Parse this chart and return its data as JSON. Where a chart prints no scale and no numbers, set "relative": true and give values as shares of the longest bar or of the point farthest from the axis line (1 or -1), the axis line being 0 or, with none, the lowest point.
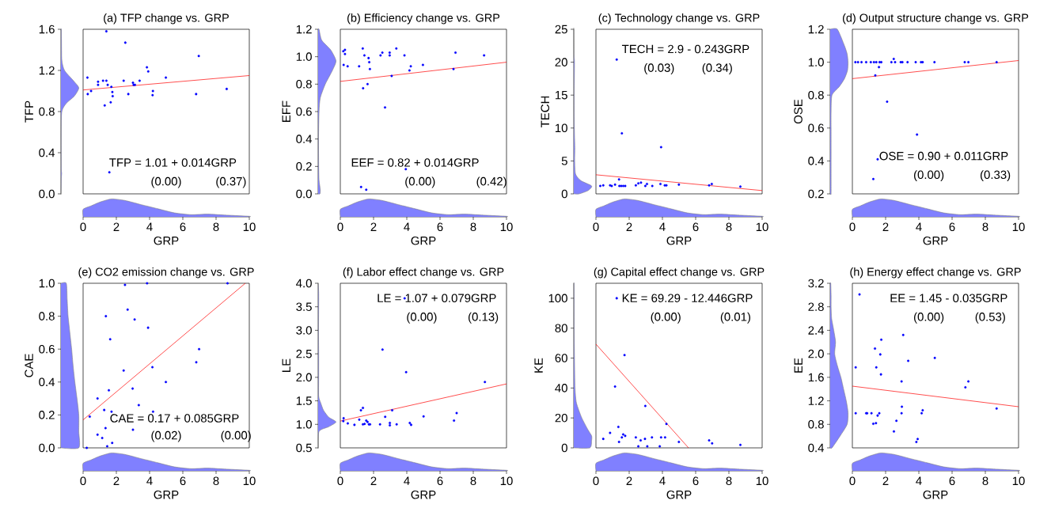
{
  "chart_data": [
    {
      "type": "scatter",
      "title": "(a) TFP change vs. GRP",
      "xlim": [
        0,
        10
      ],
      "ylim": [
        0,
        1.6
      ],
      "tick_labels": false,
      "marker": "circle",
      "annotations": [
        "TFP = 1.01 + 0.014GRP",
        "(0.00)",
        "(0.37)"
      ],
      "series": [
        {
          "type": "scatter",
          "color": "#0000ff",
          "x": [
            0.26,
            0.28,
            0.48,
            0.9,
            0.9,
            1.2,
            1.3,
            1.4,
            1.4,
            1.48,
            1.66,
            1.7,
            1.76,
            1.78,
            1.58,
            2.44,
            2.54,
            2.72,
            3.0,
            3.04,
            3.12,
            3.4,
            3.84,
            3.92,
            4.2,
            4.18,
            4.98,
            6.8,
            6.96,
            8.64
          ],
          "values": [
            1.13,
            0.97,
            1.0,
            1.09,
            1.06,
            1.1,
            0.86,
            1.58,
            1.1,
            1.06,
            0.89,
            1.04,
            0.99,
            0.95,
            0.21,
            1.1,
            1.47,
            0.97,
            1.08,
            1.06,
            1.06,
            1.1,
            1.23,
            1.19,
            1.0,
            0.96,
            1.13,
            0.97,
            1.34,
            1.02
          ]
        },
        {
          "type": "line",
          "color": "#ff0000",
          "x": [
            0,
            10
          ],
          "values": [
            1.01,
            1.15
          ],
          "marker": "none"
        }
      ]
    },
    {
      "type": "area",
      "relative": true,
      "color": "#8080ff",
      "xlim": [
        0,
        10
      ],
      "xticks": [
        0,
        2,
        4,
        6,
        8,
        10
      ],
      "xlabel": "GRP",
      "tick_labels": "x",
      "x": [
        0,
        0.5,
        1,
        1.7,
        2.5,
        3.5,
        4.5,
        5.5,
        6.5,
        7.5,
        8.5,
        10
      ],
      "values": [
        0.42,
        0.62,
        0.82,
        1.0,
        0.92,
        0.68,
        0.45,
        0.22,
        0.12,
        0.15,
        0.1,
        0.03
      ]
    },
    {
      "type": "area",
      "orientation": "horizontal",
      "relative": true,
      "color": "#8080ff",
      "ylim": [
        0,
        1.6
      ],
      "yticks": [
        {
          "value": 0,
          "label": "0.0"
        },
        0.4,
        0.8,
        1.2,
        1.6
      ],
      "ylabel": "TFP",
      "tick_labels": "y",
      "x": [
        0,
        0.15,
        0.2,
        0.25,
        0.6,
        0.8,
        0.88,
        0.95,
        1.03,
        1.1,
        1.2,
        1.3,
        1.5,
        1.6
      ],
      "values": [
        0,
        0.02,
        0.04,
        0.02,
        0.01,
        0.05,
        0.3,
        0.75,
        1.0,
        0.7,
        0.2,
        0.05,
        0.03,
        0.02
      ]
    },
    {
      "type": "scatter",
      "title": "(b) Efficiency change vs. GRP",
      "xlim": [
        0,
        10
      ],
      "ylim": [
        0,
        1.2
      ],
      "tick_labels": false,
      "marker": "circle",
      "annotations": [
        "EEF = 0.82 + 0.014GRP",
        "(0.00)",
        "(0.42)"
      ],
      "series": [
        {
          "type": "scatter",
          "color": "#0000ff",
          "x": [
            0.18,
            0.2,
            0.44,
            0.28,
            0.28,
            1.13,
            1.35,
            1.45,
            1.37,
            1.64,
            1.7,
            1.74,
            1.78,
            1.25,
            1.56,
            2.42,
            2.53,
            2.69,
            2.97,
            2.97,
            3.37,
            3.09,
            3.86,
            3.94,
            4.24,
            4.16,
            4.97,
            6.81,
            6.93,
            8.65
          ],
          "values": [
            1.04,
            0.94,
            0.93,
            1.05,
            1.02,
            0.93,
            1.06,
            1.01,
            0.77,
            0.8,
            0.99,
            0.96,
            0.91,
            0.05,
            0.03,
            1.01,
            1.03,
            0.63,
            1.03,
            1.01,
            1.06,
            0.86,
            1.01,
            0.18,
            0.93,
            0.9,
            0.94,
            0.91,
            1.03,
            1.01
          ]
        },
        {
          "type": "line",
          "color": "#ff0000",
          "x": [
            0,
            10
          ],
          "values": [
            0.82,
            0.96
          ],
          "marker": "none"
        }
      ]
    },
    {
      "type": "area",
      "relative": true,
      "color": "#8080ff",
      "xlim": [
        0,
        10
      ],
      "xticks": [
        0,
        2,
        4,
        6,
        8,
        10
      ],
      "xlabel": "GRP",
      "tick_labels": "x",
      "x": [
        0,
        0.5,
        1,
        1.7,
        2.5,
        3.5,
        4.5,
        5.5,
        6.5,
        7.5,
        8.5,
        10
      ],
      "values": [
        0.42,
        0.62,
        0.82,
        1.0,
        0.92,
        0.68,
        0.45,
        0.22,
        0.12,
        0.15,
        0.1,
        0.03
      ]
    },
    {
      "type": "area",
      "orientation": "horizontal",
      "relative": true,
      "color": "#8080ff",
      "ylim": [
        0,
        1.2
      ],
      "yticks": [
        {
          "value": 0,
          "label": "0.0"
        },
        0.2,
        0.4,
        0.6,
        0.8,
        {
          "value": 1,
          "label": "1.0"
        },
        1.2
      ],
      "ylabel": "EFF",
      "tick_labels": "y",
      "x": [
        0,
        0.03,
        0.1,
        0.2,
        0.4,
        0.6,
        0.7,
        0.8,
        0.9,
        0.97,
        1.05,
        1.12,
        1.2
      ],
      "values": [
        0.1,
        0.12,
        0.05,
        0.03,
        0.02,
        0.05,
        0.12,
        0.4,
        0.8,
        1.0,
        0.7,
        0.2,
        0.05
      ]
    },
    {
      "type": "scatter",
      "title": "(c) Technology change vs. GRP",
      "xlim": [
        0,
        10
      ],
      "ylim": [
        0,
        25
      ],
      "tick_labels": false,
      "marker": "circle",
      "annotations": [
        "TECH = 2.9 - 0.243GRP",
        "(0.03)",
        "(0.34)"
      ],
      "series": [
        {
          "type": "scatter",
          "color": "#0000ff",
          "x": [
            0.26,
            0.44,
            0.85,
            0.95,
            1.15,
            1.25,
            1.39,
            1.41,
            1.52,
            1.56,
            1.64,
            1.76,
            2.4,
            2.55,
            2.71,
            2.97,
            3.07,
            3.39,
            3.88,
            3.92,
            4.14,
            4.24,
            4.99,
            6.81,
            6.97,
            8.69
          ],
          "values": [
            1.2,
            1.3,
            1.3,
            1.2,
            1.4,
            20.4,
            2.2,
            1.2,
            1.2,
            9.2,
            1.2,
            1.2,
            1.3,
            1.6,
            1.7,
            1.2,
            1.5,
            1.2,
            1.5,
            7.1,
            1.3,
            1.3,
            1.4,
            1.3,
            1.5,
            1.1
          ]
        },
        {
          "type": "line",
          "color": "#ff0000",
          "x": [
            0,
            10
          ],
          "values": [
            2.9,
            0.5
          ],
          "marker": "none"
        }
      ]
    },
    {
      "type": "area",
      "relative": true,
      "color": "#8080ff",
      "xlim": [
        0,
        10
      ],
      "xticks": [
        0,
        2,
        4,
        6,
        8,
        10
      ],
      "xlabel": "GRP",
      "tick_labels": "x",
      "x": [
        0,
        0.5,
        1,
        1.7,
        2.5,
        3.5,
        4.5,
        5.5,
        6.5,
        7.5,
        8.5,
        10
      ],
      "values": [
        0.42,
        0.62,
        0.82,
        1.0,
        0.92,
        0.68,
        0.45,
        0.22,
        0.12,
        0.15,
        0.1,
        0.03
      ]
    },
    {
      "type": "area",
      "orientation": "horizontal",
      "relative": true,
      "color": "#8080ff",
      "ylim": [
        0,
        25
      ],
      "yticks": [
        0,
        5,
        10,
        15,
        20,
        25
      ],
      "ylabel": "TECH",
      "tick_labels": "y",
      "x": [
        0,
        0.5,
        1.2,
        2,
        3,
        5,
        7,
        9,
        12,
        15,
        20,
        21,
        25
      ],
      "values": [
        0.3,
        0.8,
        1.0,
        0.4,
        0.1,
        0.05,
        0.06,
        0.04,
        0.02,
        0.02,
        0.04,
        0.01,
        0
      ]
    },
    {
      "type": "scatter",
      "title": "(d) Output structure change vs. GRP",
      "xlim": [
        0,
        10
      ],
      "ylim": [
        0.2,
        1.2
      ],
      "tick_labels": false,
      "marker": "circle",
      "annotations": [
        "OSE = 0.90 + 0.011GRP",
        "(0.00)",
        "(0.33)"
      ],
      "series": [
        {
          "type": "scatter",
          "color": "#0000ff",
          "x": [
            0.18,
            0.34,
            0.55,
            0.83,
            1.11,
            1.3,
            1.44,
            1.64,
            1.74,
            2.35,
            2.57,
            2.91,
            3.01,
            3.32,
            3.81,
            4.13,
            4.23,
            4.94,
            6.76,
            6.98,
            8.68,
            2.49,
            1.38,
            1.6,
            2.09,
            3.89,
            1.52,
            1.26
          ],
          "values": [
            1.0,
            1.0,
            1.0,
            1.0,
            1.0,
            1.0,
            1.0,
            1.0,
            1.0,
            1.0,
            1.0,
            1.0,
            1.0,
            1.0,
            1.0,
            1.0,
            1.0,
            1.0,
            1.0,
            1.0,
            1.0,
            1.02,
            0.92,
            0.97,
            0.76,
            0.56,
            0.41,
            0.29
          ]
        },
        {
          "type": "line",
          "color": "#ff0000",
          "x": [
            0,
            10
          ],
          "values": [
            0.9,
            1.01
          ],
          "marker": "none"
        }
      ]
    },
    {
      "type": "area",
      "relative": true,
      "color": "#8080ff",
      "xlim": [
        0,
        10
      ],
      "xticks": [
        0,
        2,
        4,
        6,
        8,
        10
      ],
      "xlabel": "GRP",
      "tick_labels": "x",
      "x": [
        0,
        0.5,
        1,
        1.7,
        2.5,
        3.5,
        4.5,
        5.5,
        6.5,
        7.5,
        8.5,
        10
      ],
      "values": [
        0.42,
        0.62,
        0.82,
        1.0,
        0.92,
        0.68,
        0.45,
        0.22,
        0.12,
        0.15,
        0.1,
        0.03
      ]
    },
    {
      "type": "area",
      "orientation": "horizontal",
      "relative": true,
      "color": "#8080ff",
      "ylim": [
        0.2,
        1.2
      ],
      "yticks": [
        0.2,
        0.4,
        0.6,
        0.8,
        {
          "value": 1,
          "label": "1.0"
        },
        1.2
      ],
      "ylabel": "OSE",
      "tick_labels": "y",
      "x": [
        0.2,
        0.3,
        0.4,
        0.5,
        0.6,
        0.7,
        0.8,
        0.85,
        0.9,
        0.95,
        1.0,
        1.05,
        1.1,
        1.2
      ],
      "values": [
        0.05,
        0.05,
        0.05,
        0.05,
        0.05,
        0.05,
        0.1,
        0.5,
        0.8,
        0.97,
        1.0,
        0.95,
        0.8,
        0.4
      ]
    },
    {
      "type": "scatter",
      "title": "(e) CO2 emission change vs. GRP",
      "xlim": [
        0,
        10
      ],
      "ylim": [
        0,
        1
      ],
      "tick_labels": false,
      "marker": "circle",
      "annotations": [
        "CAE = 0.17 + 0.085GRP",
        "(0.02)",
        "(0.00)"
      ],
      "series": [
        {
          "type": "scatter",
          "color": "#0000ff",
          "x": [
            0.22,
            0.4,
            0.87,
            0.87,
            1.15,
            1.27,
            1.35,
            1.37,
            1.45,
            1.55,
            1.63,
            1.71,
            1.75,
            2.44,
            2.52,
            2.68,
            2.98,
            3.0,
            3.1,
            3.35,
            3.85,
            3.91,
            4.17,
            4.21,
            4.98,
            6.81,
            6.98,
            8.69
          ],
          "values": [
            0.0,
            0.19,
            0.08,
            0.3,
            0.06,
            0.23,
            0.12,
            0.8,
            0.01,
            0.35,
            0.66,
            0.22,
            0.03,
            0.47,
            0.99,
            0.84,
            0.36,
            0.11,
            0.78,
            0.26,
            1.0,
            0.73,
            0.49,
            0.22,
            0.4,
            0.52,
            0.6,
            1.0
          ]
        },
        {
          "type": "line",
          "color": "#ff0000",
          "x": [
            0,
            9.76
          ],
          "values": [
            0.17,
            1.0
          ],
          "marker": "none"
        }
      ]
    },
    {
      "type": "area",
      "relative": true,
      "color": "#8080ff",
      "xlim": [
        0,
        10
      ],
      "xticks": [
        0,
        2,
        4,
        6,
        8,
        10
      ],
      "xlabel": "GRP",
      "tick_labels": "x",
      "x": [
        0,
        0.5,
        1,
        1.7,
        2.5,
        3.5,
        4.5,
        5.5,
        6.5,
        7.5,
        8.5,
        10
      ],
      "values": [
        0.42,
        0.62,
        0.82,
        1.0,
        0.92,
        0.68,
        0.45,
        0.22,
        0.12,
        0.15,
        0.1,
        0.03
      ]
    },
    {
      "type": "area",
      "orientation": "horizontal",
      "relative": true,
      "color": "#8080ff",
      "ylim": [
        0,
        1
      ],
      "yticks": [
        {
          "value": 0,
          "label": "0.0"
        },
        0.2,
        0.4,
        0.6,
        0.8,
        {
          "value": 1,
          "label": "1.0"
        }
      ],
      "ylabel": "CAE",
      "tick_labels": "y",
      "x": [
        0,
        0.1,
        0.2,
        0.3,
        0.4,
        0.5,
        0.6,
        0.7,
        0.8,
        0.9,
        1.0
      ],
      "values": [
        1.0,
        1.0,
        1.0,
        0.9,
        0.78,
        0.68,
        0.6,
        0.5,
        0.4,
        0.35,
        0.3
      ]
    },
    {
      "type": "scatter",
      "title": "(f) Labor effect change vs. GRP",
      "xlim": [
        0,
        10
      ],
      "ylim": [
        0.5,
        4
      ],
      "tick_labels": false,
      "marker": "circle",
      "annotations": [
        "LE = 1.07 + 0.079GRP",
        "(0.00)",
        "(0.13)"
      ],
      "series": [
        {
          "type": "scatter",
          "color": "#0000ff",
          "x": [
            0.18,
            0.2,
            0.45,
            0.85,
            1.14,
            1.24,
            1.36,
            1.36,
            1.46,
            1.56,
            1.64,
            1.72,
            1.79,
            2.39,
            2.54,
            2.7,
            2.98,
            2.98,
            3.12,
            3.39,
            3.87,
            3.96,
            4.18,
            4.26,
            5.01,
            6.84,
            7.0,
            8.7
          ],
          "values": [
            1.07,
            1.13,
            1.02,
            0.99,
            1.1,
            1.3,
            1.35,
            1.0,
            1.01,
            1.08,
            1.05,
            1.0,
            1.0,
            1.0,
            2.59,
            1.16,
            0.98,
            1.03,
            1.3,
            1.0,
            3.68,
            2.11,
            1.03,
            0.99,
            1.17,
            1.08,
            1.24,
            1.9
          ]
        },
        {
          "type": "line",
          "color": "#ff0000",
          "x": [
            0,
            10
          ],
          "values": [
            1.07,
            1.86
          ],
          "marker": "none"
        }
      ]
    },
    {
      "type": "area",
      "relative": true,
      "color": "#8080ff",
      "xlim": [
        0,
        10
      ],
      "xticks": [
        0,
        2,
        4,
        6,
        8,
        10
      ],
      "xlabel": "GRP",
      "tick_labels": "x",
      "x": [
        0,
        0.5,
        1,
        1.7,
        2.5,
        3.5,
        4.5,
        5.5,
        6.5,
        7.5,
        8.5,
        10
      ],
      "values": [
        0.42,
        0.62,
        0.82,
        1.0,
        0.92,
        0.68,
        0.45,
        0.22,
        0.12,
        0.15,
        0.1,
        0.03
      ]
    },
    {
      "type": "area",
      "orientation": "horizontal",
      "relative": true,
      "color": "#8080ff",
      "ylim": [
        0.5,
        4
      ],
      "yticks": [
        0.5,
        {
          "value": 1,
          "label": "1.0"
        },
        1.5,
        {
          "value": 2,
          "label": "2.0"
        },
        2.5,
        {
          "value": 3,
          "label": "3.0"
        },
        3.5,
        {
          "value": 4,
          "label": "4.0"
        }
      ],
      "ylabel": "LE",
      "tick_labels": "y",
      "x": [
        0.5,
        0.85,
        0.95,
        1.05,
        1.15,
        1.3,
        1.45,
        1.6,
        2.0,
        2.5,
        3.0,
        3.5,
        3.8,
        4.0
      ],
      "values": [
        0,
        0.05,
        0.6,
        1.0,
        0.6,
        0.3,
        0.15,
        0.03,
        0.03,
        0.03,
        0.02,
        0.03,
        0.03,
        0
      ]
    },
    {
      "type": "scatter",
      "title": "(g) Capital effect change vs. GRP",
      "xlim": [
        0,
        10
      ],
      "ylim": [
        0,
        110
      ],
      "tick_labels": false,
      "marker": "circle",
      "annotations": [
        "KE = 69.29 - 12.446GRP",
        "(0.00)",
        "(0.01)"
      ],
      "series": [
        {
          "type": "scatter",
          "color": "#0000ff",
          "x": [
            0.44,
            0.85,
            1.15,
            1.25,
            1.35,
            1.39,
            1.56,
            1.64,
            1.72,
            1.76,
            2.4,
            2.55,
            2.69,
            2.95,
            2.97,
            3.09,
            3.37,
            3.84,
            3.92,
            4.16,
            4.24,
            4.99,
            6.81,
            6.99,
            8.69
          ],
          "values": [
            6,
            10,
            41,
            100,
            14,
            4,
            7,
            9,
            62,
            8,
            7,
            1,
            5,
            6,
            28,
            1,
            7,
            1,
            7,
            7,
            16,
            4,
            5,
            3,
            2
          ]
        },
        {
          "type": "line",
          "color": "#ff0000",
          "x": [
            0,
            5.57
          ],
          "values": [
            69.3,
            0
          ],
          "marker": "none"
        }
      ]
    },
    {
      "type": "area",
      "relative": true,
      "color": "#8080ff",
      "xlim": [
        0,
        10
      ],
      "xticks": [
        0,
        2,
        4,
        6,
        8,
        10
      ],
      "xlabel": "GRP",
      "tick_labels": "x",
      "x": [
        0,
        0.5,
        1,
        1.7,
        2.5,
        3.5,
        4.5,
        5.5,
        6.5,
        7.5,
        8.5,
        10
      ],
      "values": [
        0.42,
        0.62,
        0.82,
        1.0,
        0.92,
        0.68,
        0.45,
        0.22,
        0.12,
        0.15,
        0.1,
        0.03
      ]
    },
    {
      "type": "area",
      "orientation": "horizontal",
      "relative": true,
      "color": "#8080ff",
      "ylim": [
        0,
        110
      ],
      "yticks": [
        0,
        20,
        40,
        60,
        80,
        100
      ],
      "ylabel": "KE",
      "tick_labels": "y",
      "x": [
        0,
        5,
        8,
        12,
        20,
        30,
        40,
        60,
        80,
        100,
        110
      ],
      "values": [
        0.9,
        1.0,
        1.0,
        0.8,
        0.45,
        0.15,
        0.07,
        0.04,
        0.02,
        0.02,
        0.01
      ]
    },
    {
      "type": "scatter",
      "title": "(h) Energy effect change vs. GRP",
      "xlim": [
        0,
        10
      ],
      "ylim": [
        0.4,
        3.2
      ],
      "tick_labels": false,
      "marker": "circle",
      "annotations": [
        "EE = 1.45 - 0.035GRP",
        "(0.00)",
        "(0.53)"
      ],
      "series": [
        {
          "type": "scatter",
          "color": "#0000ff",
          "x": [
            0.2,
            0.2,
            0.43,
            0.83,
            0.89,
            1.15,
            1.26,
            1.36,
            1.42,
            1.44,
            1.52,
            1.62,
            1.68,
            1.72,
            1.74,
            2.96,
            2.5,
            2.65,
            2.96,
            2.98,
            3.06,
            3.36,
            3.85,
            3.93,
            4.17,
            4.23,
            4.96,
            6.8,
            6.98,
            8.68
          ],
          "values": [
            1.77,
            0.99,
            3.01,
            0.99,
            0.99,
            0.99,
            0.81,
            2.09,
            0.82,
            1.77,
            0.95,
            0.99,
            1.99,
            1.65,
            2.24,
            0.99,
            0.68,
            0.86,
            1.53,
            1.1,
            2.32,
            1.88,
            0.5,
            0.55,
            0.99,
            1.04,
            1.93,
            1.43,
            1.53,
            1.07
          ]
        },
        {
          "type": "line",
          "color": "#ff0000",
          "x": [
            0,
            10
          ],
          "values": [
            1.45,
            1.1
          ],
          "marker": "none"
        }
      ]
    },
    {
      "type": "area",
      "relative": true,
      "color": "#8080ff",
      "xlim": [
        0,
        10
      ],
      "xticks": [
        0,
        2,
        4,
        6,
        8,
        10
      ],
      "xlabel": "GRP",
      "tick_labels": "x",
      "x": [
        0,
        0.5,
        1,
        1.7,
        2.5,
        3.5,
        4.5,
        5.5,
        6.5,
        7.5,
        8.5,
        10
      ],
      "values": [
        0.42,
        0.62,
        0.82,
        1.0,
        0.92,
        0.68,
        0.45,
        0.22,
        0.12,
        0.15,
        0.1,
        0.03
      ]
    },
    {
      "type": "area",
      "orientation": "horizontal",
      "relative": true,
      "color": "#8080ff",
      "ylim": [
        0.4,
        3.2
      ],
      "yticks": [
        0.4,
        0.8,
        1.2,
        1.6,
        {
          "value": 2,
          "label": "2.0"
        },
        2.4,
        2.8,
        3.2
      ],
      "ylabel": "EE",
      "tick_labels": "y",
      "x": [
        0.4,
        0.6,
        0.8,
        1.0,
        1.2,
        1.4,
        1.6,
        1.8,
        2.0,
        2.2,
        2.4,
        2.6,
        2.8,
        3.0,
        3.2
      ],
      "values": [
        0.1,
        0.55,
        0.95,
        1.0,
        0.9,
        0.75,
        0.6,
        0.4,
        0.25,
        0.3,
        0.2,
        0.08,
        0.05,
        0.05,
        0.03
      ]
    }
  ]
}
